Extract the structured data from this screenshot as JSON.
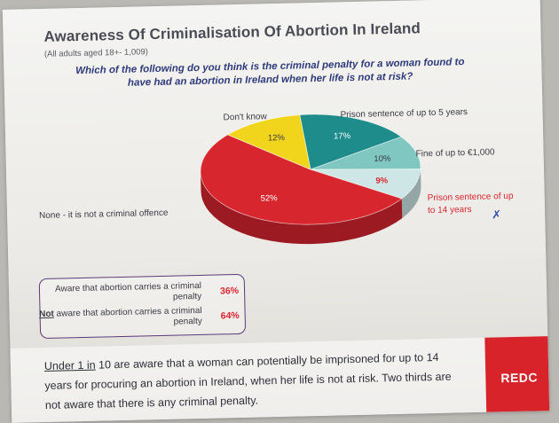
{
  "title": "Awareness Of Criminalisation Of Abortion In Ireland",
  "subtitle": "(All adults aged 18+- 1,009)",
  "question": "Which of the following do you think is the criminal penalty for a woman found to have had an abortion in Ireland when her life is not at risk?",
  "chart_data": {
    "type": "pie",
    "title": "Awareness Of Criminalisation Of Abortion In Ireland",
    "slices": [
      {
        "label": "Prison sentence of up to 5 years",
        "value": 17,
        "display": "17%",
        "color": "#1e8c8a"
      },
      {
        "label": "Fine of up to €1,000",
        "value": 10,
        "display": "10%",
        "color": "#7fc7c0"
      },
      {
        "label": "Prison sentence of up to 14 years",
        "value": 9,
        "display": "9%",
        "color": "#cfe6e6"
      },
      {
        "label": "None - it is not a criminal offence",
        "value": 52,
        "display": "52%",
        "color": "#d8262f"
      },
      {
        "label": "Don't know",
        "value": 12,
        "display": "12%",
        "color": "#f0d51c"
      }
    ]
  },
  "awareness": {
    "aware_text": "Aware that abortion carries a criminal penalty",
    "aware_value": "36%",
    "not_word": "Not",
    "not_aware_rest": " aware that abortion carries a criminal penalty",
    "not_aware_value": "64%"
  },
  "footer": {
    "underlined": "Under 1 in",
    "rest": " 10 are aware that a woman can potentially be imprisoned for up to 14 years for procuring an abortion in Ireland, when her life is not at risk. Two thirds are not aware that there is any criminal penalty."
  },
  "brand": "REDC",
  "pen_mark": "✗"
}
